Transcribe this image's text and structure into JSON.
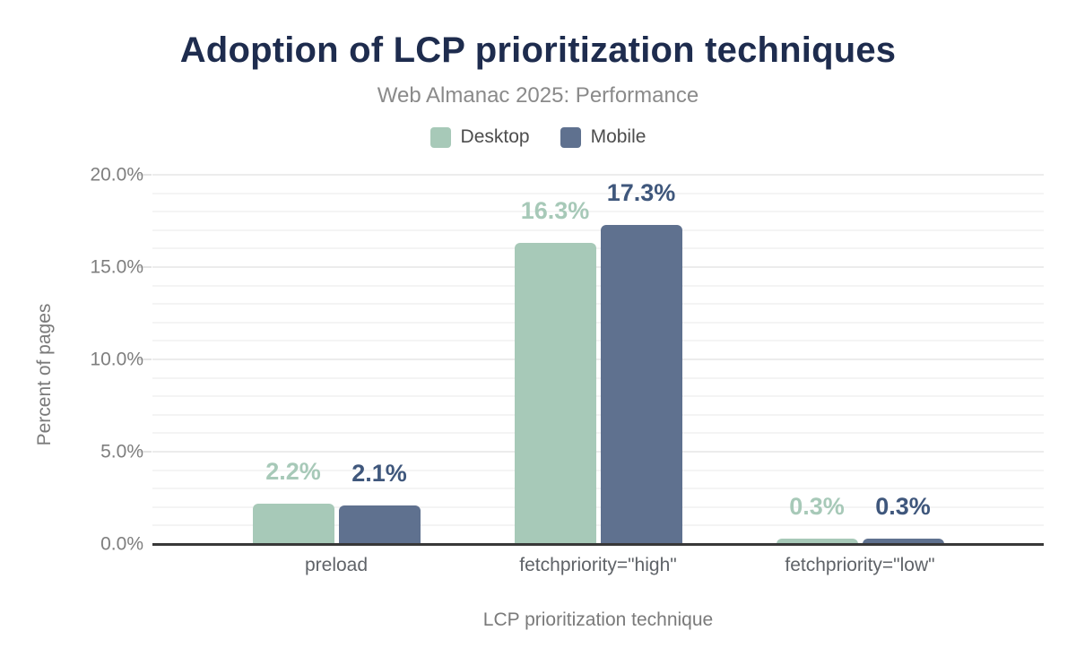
{
  "header": {
    "title": "Adoption of LCP prioritization techniques",
    "subtitle": "Web Almanac 2025: Performance"
  },
  "legend": {
    "items": [
      {
        "label": "Desktop",
        "color": "#a7c9b8"
      },
      {
        "label": "Mobile",
        "color": "#5f718f"
      }
    ]
  },
  "axes": {
    "y_title": "Percent of pages",
    "x_title": "LCP prioritization technique",
    "y_tick_labels": [
      "0.0%",
      "5.0%",
      "10.0%",
      "15.0%",
      "20.0%"
    ]
  },
  "chart_data": {
    "type": "bar",
    "title": "Adoption of LCP prioritization techniques",
    "subtitle": "Web Almanac 2025: Performance",
    "categories": [
      "preload",
      "fetchpriority=\"high\"",
      "fetchpriority=\"low\""
    ],
    "series": [
      {
        "name": "Desktop",
        "color": "#a7c9b8",
        "label_color": "#a7c9b8",
        "values": [
          2.2,
          16.3,
          0.3
        ]
      },
      {
        "name": "Mobile",
        "color": "#5f718f",
        "label_color": "#3f577c",
        "values": [
          2.1,
          17.3,
          0.3
        ]
      }
    ],
    "value_labels": [
      [
        "2.2%",
        "16.3%",
        "0.3%"
      ],
      [
        "2.1%",
        "17.3%",
        "0.3%"
      ]
    ],
    "xlabel": "LCP prioritization technique",
    "ylabel": "Percent of pages",
    "ylim": [
      0,
      20
    ],
    "y_tick_step": 5,
    "y_minor_grid_step": 1,
    "grid": "horizontal-minor",
    "legend_position": "top",
    "bar_corner_radius": "rounded-top",
    "axis_line_color": "#383838"
  }
}
